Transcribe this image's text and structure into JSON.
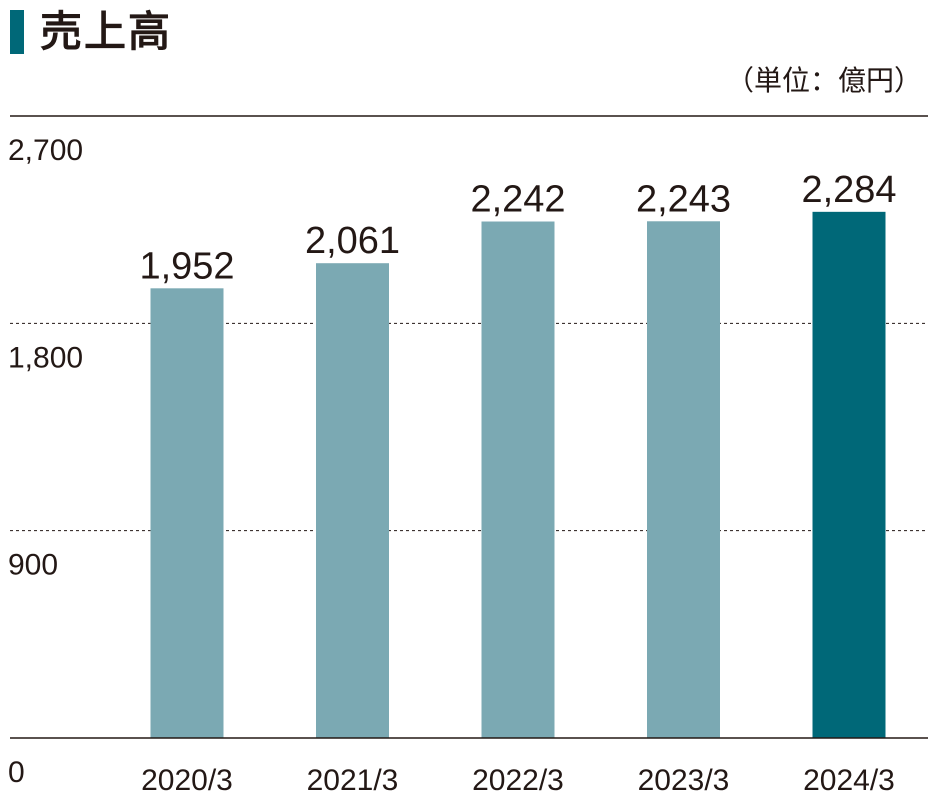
{
  "header": {
    "title": "売上高",
    "unit": "（単位：億円）"
  },
  "colors": {
    "accent": "#006878",
    "bar": "#7BA9B3",
    "bar_highlight": "#006878",
    "highlight_label": "#0B3C46",
    "text": "#231815"
  },
  "chart_data": {
    "type": "bar",
    "title": "売上高",
    "ylabel": "（単位：億円）",
    "categories": [
      "2020/3",
      "2021/3",
      "2022/3",
      "2023/3",
      "2024/3"
    ],
    "values": [
      1952,
      2061,
      2242,
      2243,
      2284
    ],
    "value_labels": [
      "1,952",
      "2,061",
      "2,242",
      "2,243",
      "2,284"
    ],
    "highlight_index": 4,
    "ylim": [
      0,
      2700
    ],
    "yticks": [
      0,
      900,
      1800,
      2700
    ],
    "ytick_labels": [
      "0",
      "900",
      "1,800",
      "2,700"
    ],
    "grid": "dashed at 900 and 1,800",
    "legend": "none"
  }
}
